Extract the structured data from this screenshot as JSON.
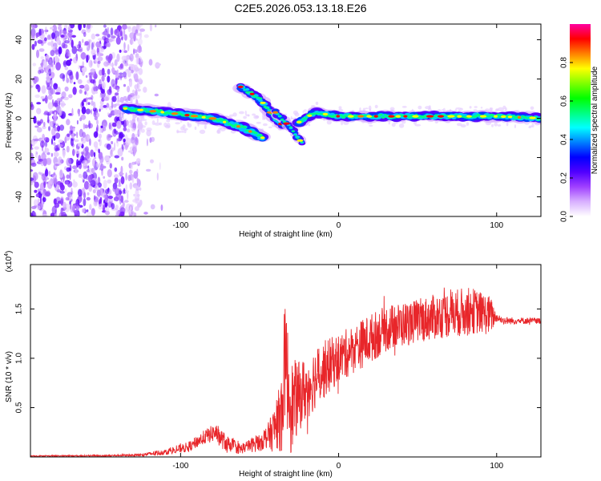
{
  "title": "C2E5.2026.053.13.18.E26",
  "chart_data": [
    {
      "type": "heatmap",
      "name": "spectrogram",
      "xlabel": "Height of straight line (km)",
      "ylabel": "Frequency (Hz)",
      "xlim": [
        -195,
        128
      ],
      "ylim": [
        -50,
        48
      ],
      "xticks": [
        -100,
        0,
        100
      ],
      "yticks": [
        -40,
        -20,
        0,
        20,
        40
      ],
      "colorbar": {
        "label": "Normalized spectral amplitude",
        "range": [
          0.0,
          1.0
        ],
        "ticks": [
          "0.0",
          "0.2",
          "0.4",
          "0.6",
          "0.8"
        ],
        "tick_values": [
          0.0,
          0.2,
          0.4,
          0.6,
          0.8
        ],
        "colors": [
          "#ffffff",
          "#d8b0ff",
          "#a040ff",
          "#5000ff",
          "#0000ff",
          "#0080ff",
          "#00ffff",
          "#00ff80",
          "#00ff00",
          "#80ff00",
          "#ffff00",
          "#ff8000",
          "#ff0000",
          "#ff00a0"
        ]
      },
      "features": [
        {
          "name": "main-trace",
          "points": [
            [
              -135,
              5
            ],
            [
              -110,
              3
            ],
            [
              -80,
              0
            ],
            [
              -60,
              -5
            ],
            [
              -48,
              -10
            ]
          ]
        },
        {
          "name": "upper-branch",
          "points": [
            [
              -62,
              16
            ],
            [
              -50,
              10
            ],
            [
              -40,
              0
            ],
            [
              -35,
              -4
            ]
          ]
        },
        {
          "name": "lower-branch",
          "points": [
            [
              -40,
              3
            ],
            [
              -30,
              -5
            ],
            [
              -22,
              -14
            ]
          ]
        },
        {
          "name": "carrier",
          "points": [
            [
              -25,
              -2
            ],
            [
              -15,
              3
            ],
            [
              0,
              1
            ],
            [
              50,
              1
            ],
            [
              100,
              1
            ],
            [
              128,
              0
            ]
          ]
        }
      ]
    },
    {
      "type": "line",
      "name": "snr",
      "xlabel": "Height of straight line (km)",
      "ylabel": "SNR (10 * v/v)",
      "yscale_label": "(x10",
      "yscale_exp": "4",
      "xlim": [
        -195,
        128
      ],
      "ylim": [
        0,
        1.95
      ],
      "xticks": [
        -100,
        0,
        100
      ],
      "yticks": [
        "0.5",
        "1.0",
        "1.5"
      ],
      "ytick_values": [
        0.5,
        1.0,
        1.5
      ],
      "color": "#e8262a",
      "envelope": [
        [
          -195,
          0.01
        ],
        [
          -150,
          0.012
        ],
        [
          -125,
          0.02
        ],
        [
          -110,
          0.05
        ],
        [
          -95,
          0.1
        ],
        [
          -85,
          0.2
        ],
        [
          -78,
          0.25
        ],
        [
          -72,
          0.15
        ],
        [
          -62,
          0.08
        ],
        [
          -50,
          0.15
        ],
        [
          -42,
          0.25
        ],
        [
          -36,
          0.45
        ],
        [
          -34,
          1.0
        ],
        [
          -30,
          0.5
        ],
        [
          -26,
          0.6
        ],
        [
          -20,
          0.7
        ],
        [
          -15,
          0.8
        ],
        [
          -8,
          0.9
        ],
        [
          0,
          1.0
        ],
        [
          10,
          1.1
        ],
        [
          20,
          1.2
        ],
        [
          30,
          1.3
        ],
        [
          50,
          1.38
        ],
        [
          70,
          1.45
        ],
        [
          85,
          1.48
        ],
        [
          97,
          1.43
        ],
        [
          105,
          1.38
        ],
        [
          128,
          1.38
        ]
      ],
      "amplitude": [
        [
          -195,
          0.005
        ],
        [
          -130,
          0.01
        ],
        [
          -110,
          0.03
        ],
        [
          -90,
          0.06
        ],
        [
          -75,
          0.1
        ],
        [
          -60,
          0.05
        ],
        [
          -45,
          0.12
        ],
        [
          -38,
          0.3
        ],
        [
          -34,
          0.6
        ],
        [
          -25,
          0.35
        ],
        [
          -10,
          0.3
        ],
        [
          0,
          0.25
        ],
        [
          20,
          0.25
        ],
        [
          50,
          0.22
        ],
        [
          80,
          0.25
        ],
        [
          96,
          0.2
        ],
        [
          100,
          0.04
        ],
        [
          128,
          0.03
        ]
      ]
    }
  ]
}
